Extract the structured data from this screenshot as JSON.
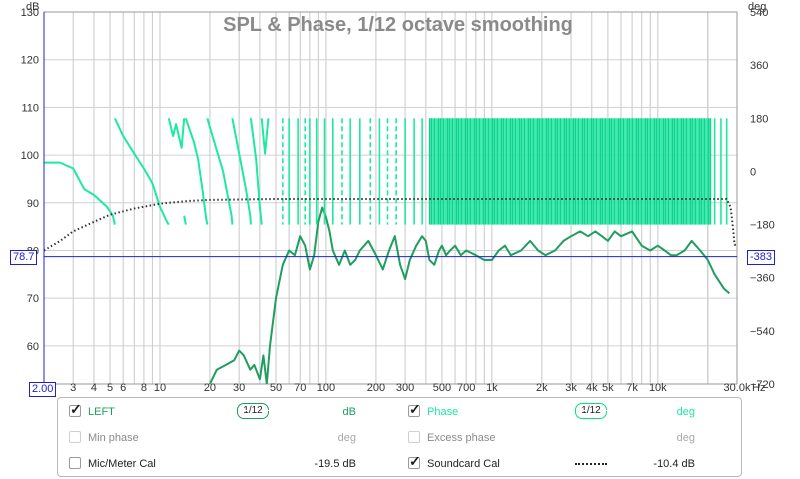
{
  "chart_data": {
    "type": "line",
    "title": "SPL & Phase, 1/12 octave smoothing",
    "left_axis": {
      "unit": "dB",
      "ylim": [
        52,
        130
      ],
      "ticks": [
        60,
        70,
        80,
        90,
        100,
        110,
        120,
        130
      ]
    },
    "right_axis": {
      "unit": "deg",
      "ylim": [
        -720,
        540
      ],
      "ticks": [
        -720,
        -540,
        -360,
        -180,
        0,
        180,
        360,
        540
      ]
    },
    "x_axis": {
      "scale": "log",
      "unit": "Hz",
      "xlim": [
        2.0,
        30000
      ],
      "tick_labels": [
        [
          "3",
          3
        ],
        [
          "4",
          4
        ],
        [
          "5",
          5
        ],
        [
          "6",
          6
        ],
        [
          "8",
          8
        ],
        [
          "10",
          10
        ],
        [
          "20",
          20
        ],
        [
          "30",
          30
        ],
        [
          "50",
          50
        ],
        [
          "70",
          70
        ],
        [
          "100",
          100
        ],
        [
          "200",
          200
        ],
        [
          "300",
          300
        ],
        [
          "500",
          500
        ],
        [
          "700",
          700
        ],
        [
          "1k",
          1000
        ],
        [
          "2k",
          2000
        ],
        [
          "3k",
          3000
        ],
        [
          "4k",
          4000
        ],
        [
          "5k",
          5000
        ],
        [
          "7k",
          7000
        ],
        [
          "10k",
          10000
        ],
        [
          "30.0k",
          30000
        ]
      ]
    },
    "cursor": {
      "x_label": "2.00",
      "y_label": "78.7",
      "right_label": "-383"
    },
    "grid": true,
    "series": [
      {
        "name": "LEFT",
        "axis": "left",
        "color": "#1f9e5e",
        "points": [
          [
            20,
            52
          ],
          [
            22,
            55
          ],
          [
            25,
            56
          ],
          [
            28,
            57
          ],
          [
            30,
            59
          ],
          [
            32,
            58
          ],
          [
            35,
            55
          ],
          [
            37,
            56
          ],
          [
            40,
            53
          ],
          [
            42,
            58
          ],
          [
            44,
            52
          ],
          [
            46,
            60
          ],
          [
            50,
            70
          ],
          [
            55,
            77
          ],
          [
            60,
            80
          ],
          [
            65,
            79
          ],
          [
            70,
            83
          ],
          [
            75,
            81
          ],
          [
            80,
            76
          ],
          [
            85,
            79
          ],
          [
            90,
            86
          ],
          [
            95,
            89
          ],
          [
            100,
            87
          ],
          [
            105,
            84
          ],
          [
            110,
            80
          ],
          [
            120,
            77
          ],
          [
            130,
            80
          ],
          [
            140,
            77
          ],
          [
            150,
            78
          ],
          [
            160,
            80
          ],
          [
            180,
            82
          ],
          [
            200,
            79
          ],
          [
            220,
            76
          ],
          [
            240,
            80
          ],
          [
            260,
            83
          ],
          [
            280,
            77
          ],
          [
            300,
            74
          ],
          [
            320,
            78
          ],
          [
            350,
            81
          ],
          [
            380,
            83
          ],
          [
            400,
            82
          ],
          [
            420,
            78
          ],
          [
            450,
            77
          ],
          [
            480,
            80
          ],
          [
            500,
            81
          ],
          [
            530,
            79
          ],
          [
            560,
            80
          ],
          [
            600,
            81
          ],
          [
            650,
            79
          ],
          [
            700,
            80
          ],
          [
            800,
            79
          ],
          [
            900,
            78
          ],
          [
            1000,
            78
          ],
          [
            1100,
            80
          ],
          [
            1200,
            81
          ],
          [
            1300,
            79
          ],
          [
            1500,
            80
          ],
          [
            1700,
            82
          ],
          [
            1900,
            80
          ],
          [
            2100,
            79
          ],
          [
            2400,
            80
          ],
          [
            2700,
            82
          ],
          [
            3000,
            83
          ],
          [
            3400,
            84
          ],
          [
            3800,
            83
          ],
          [
            4200,
            84
          ],
          [
            4600,
            83
          ],
          [
            5000,
            82
          ],
          [
            5500,
            84
          ],
          [
            6000,
            83
          ],
          [
            7000,
            84
          ],
          [
            8000,
            81
          ],
          [
            9000,
            80
          ],
          [
            10000,
            81
          ],
          [
            11000,
            80
          ],
          [
            12000,
            79
          ],
          [
            13000,
            79
          ],
          [
            14500,
            80
          ],
          [
            16000,
            82
          ],
          [
            18000,
            80
          ],
          [
            20000,
            78
          ],
          [
            22000,
            75
          ],
          [
            25000,
            72
          ],
          [
            27000,
            71
          ]
        ]
      },
      {
        "name": "Phase",
        "axis": "right",
        "color": "#1de9a0",
        "points": [
          [
            2.0,
            30
          ],
          [
            2.5,
            30
          ],
          [
            3,
            10
          ],
          [
            3.5,
            -60
          ],
          [
            4,
            -80
          ],
          [
            4.8,
            -120
          ],
          [
            5.2,
            -150
          ],
          [
            5.35,
            180
          ],
          [
            6,
            120
          ],
          [
            7,
            60
          ],
          [
            8,
            10
          ],
          [
            9,
            -40
          ],
          [
            10,
            -120
          ],
          [
            11,
            -170
          ],
          [
            11.3,
            180
          ],
          [
            12,
            120
          ],
          [
            12.5,
            160
          ],
          [
            13.5,
            80
          ],
          [
            14,
            -150
          ],
          [
            14.3,
            180
          ],
          [
            16,
            100
          ],
          [
            17,
            40
          ],
          [
            18,
            -60
          ],
          [
            19,
            -160
          ],
          [
            19.3,
            180
          ],
          [
            20,
            150
          ],
          [
            24,
            0
          ],
          [
            27,
            -150
          ],
          [
            27.3,
            180
          ],
          [
            30,
            60
          ],
          [
            33,
            -60
          ],
          [
            35,
            -150
          ],
          [
            35.3,
            180
          ],
          [
            38,
            40
          ],
          [
            40,
            -120
          ],
          [
            41,
            180
          ],
          [
            43,
            60
          ],
          [
            45,
            -150
          ]
        ],
        "dense_band": {
          "x_range": [
            420,
            21000
          ],
          "y_range": [
            -180,
            180
          ]
        }
      },
      {
        "name": "Soundcard Cal",
        "axis": "left",
        "color": "#333333",
        "dash": "dotted",
        "points": [
          [
            2.0,
            80
          ],
          [
            2.5,
            82
          ],
          [
            3,
            84
          ],
          [
            4,
            86
          ],
          [
            5,
            87.5
          ],
          [
            7,
            88.8
          ],
          [
            10,
            89.8
          ],
          [
            15,
            90.4
          ],
          [
            20,
            90.6
          ],
          [
            50,
            90.8
          ],
          [
            1000,
            90.8
          ],
          [
            10000,
            90.8
          ],
          [
            26000,
            90.8
          ],
          [
            27500,
            89
          ],
          [
            28500,
            84
          ],
          [
            29000,
            81.2
          ],
          [
            30000,
            81.2
          ]
        ]
      }
    ]
  },
  "legend": {
    "rows": [
      {
        "left": {
          "label": "LEFT",
          "checked": true,
          "enabled": true,
          "smoothing": "1/12",
          "unit": "dB",
          "color": "#1f9e5e"
        },
        "right": {
          "label": "Phase",
          "checked": true,
          "enabled": true,
          "smoothing": "1/12",
          "unit": "deg",
          "color": "#1de9a0"
        }
      },
      {
        "left": {
          "label": "Min phase",
          "checked": false,
          "enabled": false,
          "unit": "deg"
        },
        "right": {
          "label": "Excess phase",
          "checked": false,
          "enabled": false,
          "unit": "deg"
        }
      },
      {
        "left": {
          "label": "Mic/Meter Cal",
          "checked": false,
          "enabled": true,
          "value": "-19.5 dB"
        },
        "right": {
          "label": "Soundcard Cal",
          "checked": true,
          "enabled": true,
          "value": "-10.4 dB",
          "line": "dotted"
        }
      }
    ]
  }
}
